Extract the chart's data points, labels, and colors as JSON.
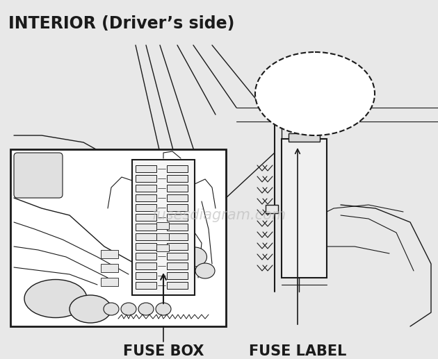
{
  "title": "INTERIOR (Driver’s side)",
  "label_fusebox": "FUSE BOX",
  "label_fuselabel": "FUSE LABEL",
  "watermark": "fusesdiagram.com",
  "bg_color": "#e8e8e8",
  "line_color": "#1a1a1a",
  "white": "#ffffff",
  "title_fontsize": 17,
  "label_fontsize": 15
}
